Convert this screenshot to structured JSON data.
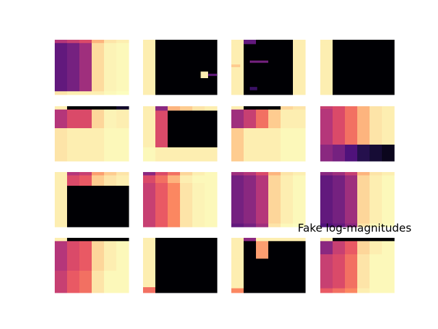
{
  "chart_data": {
    "type": "heatmap",
    "title": "Fake log-magnitudes",
    "colormap": "magma",
    "grid": false,
    "axes_visible": false,
    "layout": {
      "rows": 4,
      "cols": 4
    },
    "value_range": [
      0,
      1
    ],
    "cells": [
      {
        "breaks": [
          0.06,
          0.94
        ],
        "levels": [
          [
            0.5,
            0.3,
            0.95
          ],
          [
            0.55,
            0.35,
            0.97
          ],
          [
            0.6,
            0.45,
            0.97
          ],
          [
            0.85,
            0.93,
            0.97
          ],
          [
            0.95,
            0.98,
            0.99
          ],
          [
            0.97,
            0.99,
            1.0
          ]
        ]
      },
      {
        "breaks": [
          0.08
        ],
        "levels": [
          [
            0.97,
            0.97,
            0.98
          ],
          [
            0,
            0,
            0
          ],
          [
            0,
            0,
            0
          ],
          [
            0,
            0,
            0
          ],
          [
            0,
            0,
            0
          ],
          [
            0,
            0,
            0
          ]
        ],
        "features": [
          {
            "x": [
              0.78,
              0.88
            ],
            "y": [
              0.58,
              0.7
            ],
            "v": 0.97
          },
          {
            "x": [
              0.88,
              1.0
            ],
            "y": [
              0.62,
              0.66
            ],
            "v": 0.3
          }
        ]
      },
      {
        "breaks": [
          0.08
        ],
        "levels": [
          [
            0.97,
            0.97,
            0.97
          ],
          [
            0.3,
            0,
            0
          ],
          [
            0,
            0,
            0
          ],
          [
            0,
            0,
            0
          ],
          [
            0,
            0,
            0.98
          ],
          [
            0.97,
            0.97,
            0.97
          ]
        ],
        "features": [
          {
            "x": [
              0.25,
              0.5
            ],
            "y": [
              0.38,
              0.42
            ],
            "v": 0.35
          },
          {
            "x": [
              0.0,
              0.12
            ],
            "y": [
              0.45,
              0.5
            ],
            "v": 0.9
          },
          {
            "x": [
              0.25,
              0.35
            ],
            "y": [
              0.86,
              0.92
            ],
            "v": 0.2
          }
        ]
      },
      {
        "breaks": [
          0.08
        ],
        "levels": [
          [
            0.97,
            0.97,
            0.98
          ],
          [
            0,
            0,
            0
          ],
          [
            0,
            0,
            0
          ],
          [
            0,
            0,
            0
          ],
          [
            0,
            0,
            0
          ],
          [
            0,
            0,
            0
          ]
        ]
      },
      {
        "breaks": [
          0.06,
          0.4
        ],
        "levels": [
          [
            0.97,
            0.5,
            0.95
          ],
          [
            0,
            0.6,
            0.97
          ],
          [
            0,
            0.6,
            0.97
          ],
          [
            0,
            0.92,
            0.97
          ],
          [
            0,
            0.98,
            0.99
          ],
          [
            0.08,
            0.97,
            0.99
          ]
        ]
      },
      {
        "breaks": [
          0.08,
          0.75
        ],
        "levels": [
          [
            0.97,
            0.97,
            0.99
          ],
          [
            0.4,
            0.6,
            0.97
          ],
          [
            0.85,
            0,
            0.97
          ],
          [
            0.9,
            0,
            0.97
          ],
          [
            0.95,
            0,
            0.97
          ],
          [
            0.97,
            0,
            0.97
          ]
        ]
      },
      {
        "breaks": [
          0.06,
          0.4
        ],
        "levels": [
          [
            0.97,
            0.45,
            0.9
          ],
          [
            0,
            0.55,
            0.97
          ],
          [
            0,
            0.7,
            0.97
          ],
          [
            0,
            0.9,
            0.97
          ],
          [
            0.92,
            0.97,
            0.99
          ],
          [
            0.95,
            0.97,
            0.99
          ]
        ]
      },
      {
        "breaks": [
          0.05,
          0.7
        ],
        "levels": [
          [
            0.55,
            0.5,
            0.4
          ],
          [
            0.6,
            0.6,
            0.35
          ],
          [
            0.7,
            0.7,
            0.25
          ],
          [
            0.85,
            0.85,
            0.15
          ],
          [
            0.95,
            0.95,
            0.1
          ],
          [
            0.97,
            0.97,
            0.05
          ]
        ]
      },
      {
        "breaks": [
          0.06,
          0.25
        ],
        "levels": [
          [
            0.97,
            0.97,
            0.97
          ],
          [
            0.5,
            0.6,
            0
          ],
          [
            0.55,
            0.65,
            0
          ],
          [
            0.8,
            0.9,
            0
          ],
          [
            0.9,
            0.95,
            0
          ],
          [
            0.95,
            0.97,
            0
          ]
        ]
      },
      {
        "breaks": [
          0.06,
          0.2
        ],
        "levels": [
          [
            0.4,
            0.6,
            0.55
          ],
          [
            0.6,
            0.7,
            0.65
          ],
          [
            0.7,
            0.85,
            0.75
          ],
          [
            0.92,
            0.97,
            0.95
          ],
          [
            0.97,
            0.99,
            0.98
          ],
          [
            0.99,
            0.99,
            0.99
          ]
        ]
      },
      {
        "breaks": [
          0.06,
          0.94
        ],
        "levels": [
          [
            0.45,
            0.35,
            0.3
          ],
          [
            0.5,
            0.4,
            0.35
          ],
          [
            0.6,
            0.5,
            0.45
          ],
          [
            0.85,
            0.92,
            0.95
          ],
          [
            0.95,
            0.97,
            0.99
          ],
          [
            0.97,
            0.99,
            1.0
          ]
        ]
      },
      {
        "breaks": [
          0.06,
          0.94
        ],
        "levels": [
          [
            0.4,
            0.3,
            0.25
          ],
          [
            0.45,
            0.35,
            0.3
          ],
          [
            0.55,
            0.45,
            0.4
          ],
          [
            0.85,
            0.92,
            0.95
          ],
          [
            0.95,
            0.97,
            0.99
          ],
          [
            0.97,
            0.99,
            1.0
          ]
        ]
      },
      {
        "breaks": [
          0.06,
          0.6
        ],
        "levels": [
          [
            0.97,
            0.5,
            0.55
          ],
          [
            0,
            0.6,
            0.65
          ],
          [
            0,
            0.65,
            0.7
          ],
          [
            0,
            0.92,
            0.95
          ],
          [
            0,
            0.97,
            0.99
          ],
          [
            0,
            0.99,
            0.99
          ]
        ]
      },
      {
        "breaks": [
          0.08,
          0.9
        ],
        "levels": [
          [
            0.97,
            0.97,
            0.7
          ],
          [
            0,
            0,
            0
          ],
          [
            0,
            0,
            0
          ],
          [
            0,
            0,
            0
          ],
          [
            0,
            0,
            0
          ],
          [
            0,
            0,
            0
          ]
        ]
      },
      {
        "breaks": [
          0.06,
          0.38,
          0.92
        ],
        "levels": [
          [
            0.97,
            0.97,
            0.97,
            0.75
          ],
          [
            0.4,
            0,
            0,
            0
          ],
          [
            0.97,
            0.8,
            0,
            0
          ],
          [
            0.97,
            0,
            0,
            0
          ],
          [
            0.97,
            0,
            0,
            0
          ],
          [
            0.97,
            0,
            0,
            0
          ]
        ]
      },
      {
        "breaks": [
          0.06,
          0.3,
          0.92
        ],
        "levels": [
          [
            0.97,
            0.4,
            0.55,
            0.65
          ],
          [
            0,
            0.55,
            0.6,
            0.7
          ],
          [
            0,
            0.65,
            0.7,
            0.75
          ],
          [
            0,
            0.92,
            0.95,
            0.97
          ],
          [
            0,
            0.97,
            0.99,
            0.99
          ],
          [
            0,
            0.99,
            0.99,
            0.99
          ]
        ]
      }
    ]
  }
}
